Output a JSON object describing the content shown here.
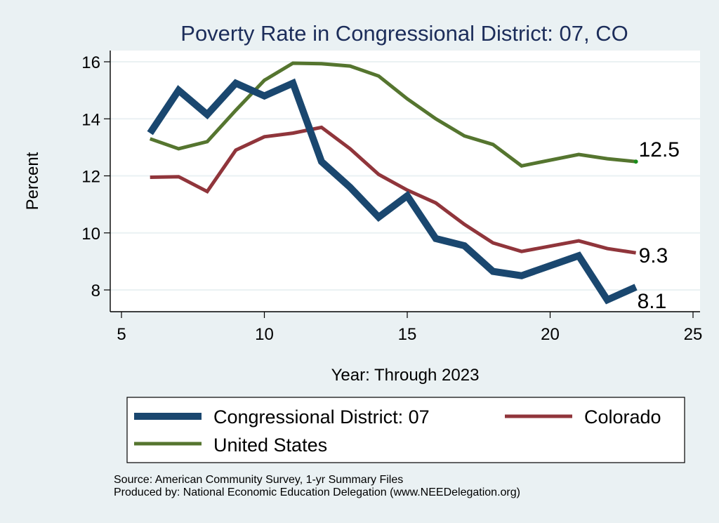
{
  "chart_data": {
    "type": "line",
    "title": "Poverty Rate in Congressional District:  07, CO",
    "xlabel": "Year: Through 2023",
    "ylabel": "Percent",
    "xlim": [
      5,
      25
    ],
    "ylim": [
      7.25,
      16.4
    ],
    "xticks": [
      5,
      10,
      15,
      20,
      25
    ],
    "yticks": [
      8,
      10,
      12,
      14,
      16
    ],
    "grid": "horizontal",
    "legend_position": "bottom",
    "series": [
      {
        "name": "Congressional District:  07",
        "color": "#1a476f",
        "x": [
          6,
          7,
          8,
          9,
          10,
          11,
          12,
          13,
          14,
          15,
          16,
          17,
          18,
          19,
          21,
          22,
          23
        ],
        "values": [
          13.5,
          15.0,
          14.15,
          15.25,
          14.8,
          15.25,
          12.5,
          11.6,
          10.55,
          11.3,
          9.8,
          9.55,
          8.65,
          8.5,
          9.2,
          7.65,
          8.1
        ],
        "end_label": "8.1"
      },
      {
        "name": "Colorado",
        "color": "#90353b",
        "x": [
          6,
          7,
          8,
          9,
          10,
          11,
          12,
          13,
          14,
          15,
          16,
          17,
          18,
          19,
          21,
          22,
          23
        ],
        "values": [
          11.95,
          11.97,
          11.45,
          12.9,
          13.37,
          13.5,
          13.7,
          12.95,
          12.05,
          11.5,
          11.05,
          10.3,
          9.65,
          9.35,
          9.72,
          9.45,
          9.3
        ],
        "end_label": "9.3"
      },
      {
        "name": "United States",
        "color": "#55752f",
        "x": [
          6,
          7,
          8,
          9,
          10,
          11,
          12,
          13,
          14,
          15,
          16,
          17,
          18,
          19,
          21,
          22,
          23
        ],
        "values": [
          13.3,
          12.95,
          13.2,
          14.3,
          15.35,
          15.95,
          15.93,
          15.85,
          15.5,
          14.7,
          14.0,
          13.4,
          13.1,
          12.35,
          12.75,
          12.6,
          12.5
        ],
        "end_label": "12.5"
      }
    ],
    "notes": [
      "Source: American Community Survey, 1-yr Summary Files",
      "Produced by: National Economic Education Delegation (www.NEEDelegation.org)"
    ]
  }
}
